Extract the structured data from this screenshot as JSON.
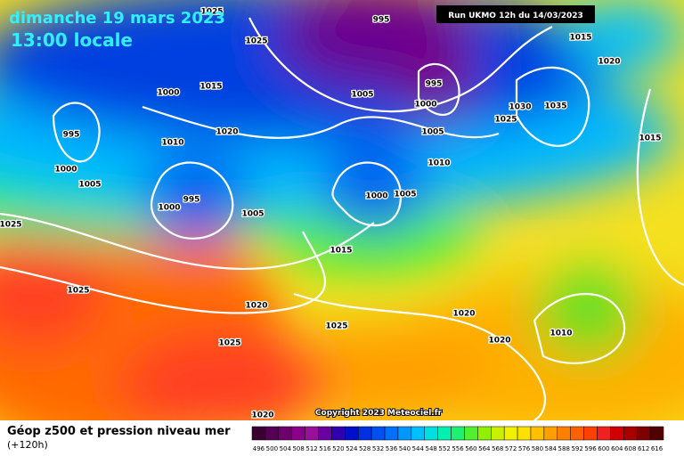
{
  "header": {
    "date": "dimanche 19 mars 2023",
    "time": "13:00 locale",
    "run": "Run UKMO 12h du 14/03/2023"
  },
  "footer": {
    "title": "Géop z500 et pression niveau mer",
    "lead": "(+120h)",
    "copyright": "Copyright 2023 Meteociel.fr"
  },
  "isobar_labels": [
    "1025",
    "995",
    "1025",
    "1015",
    "1020",
    "1000",
    "1015",
    "1005",
    "995",
    "1000",
    "1030",
    "1035",
    "1025",
    "995",
    "1020",
    "1010",
    "1005",
    "1015",
    "1000",
    "1010",
    "1005",
    "995",
    "1000",
    "1005",
    "1000",
    "1005",
    "1025",
    "1015",
    "1025",
    "1020",
    "1020",
    "1025",
    "1020",
    "1010",
    "1025",
    "1020"
  ],
  "scale": [
    {
      "value": 496,
      "color": "#3a0030"
    },
    {
      "value": 500,
      "color": "#550055"
    },
    {
      "value": 504,
      "color": "#6e006e"
    },
    {
      "value": 508,
      "color": "#8a008a"
    },
    {
      "value": 512,
      "color": "#9b109b"
    },
    {
      "value": 516,
      "color": "#6a00a0"
    },
    {
      "value": 520,
      "color": "#3000b0"
    },
    {
      "value": 524,
      "color": "#0010c8"
    },
    {
      "value": 528,
      "color": "#0030e0"
    },
    {
      "value": 532,
      "color": "#0050f0"
    },
    {
      "value": 536,
      "color": "#0070ff"
    },
    {
      "value": 540,
      "color": "#0098ff"
    },
    {
      "value": 544,
      "color": "#00c0ff"
    },
    {
      "value": 548,
      "color": "#00e0e0"
    },
    {
      "value": 552,
      "color": "#00f0b0"
    },
    {
      "value": 556,
      "color": "#20f070"
    },
    {
      "value": 560,
      "color": "#50f030"
    },
    {
      "value": 564,
      "color": "#90f000"
    },
    {
      "value": 568,
      "color": "#c8f000"
    },
    {
      "value": 572,
      "color": "#f0f000"
    },
    {
      "value": 576,
      "color": "#ffe000"
    },
    {
      "value": 580,
      "color": "#ffc000"
    },
    {
      "value": 584,
      "color": "#ffa000"
    },
    {
      "value": 588,
      "color": "#ff8000"
    },
    {
      "value": 592,
      "color": "#ff6000"
    },
    {
      "value": 596,
      "color": "#ff4000"
    },
    {
      "value": 600,
      "color": "#f02020"
    },
    {
      "value": 604,
      "color": "#d00000"
    },
    {
      "value": 608,
      "color": "#a80000"
    },
    {
      "value": 612,
      "color": "#800000"
    },
    {
      "value": 616,
      "color": "#500000"
    }
  ]
}
